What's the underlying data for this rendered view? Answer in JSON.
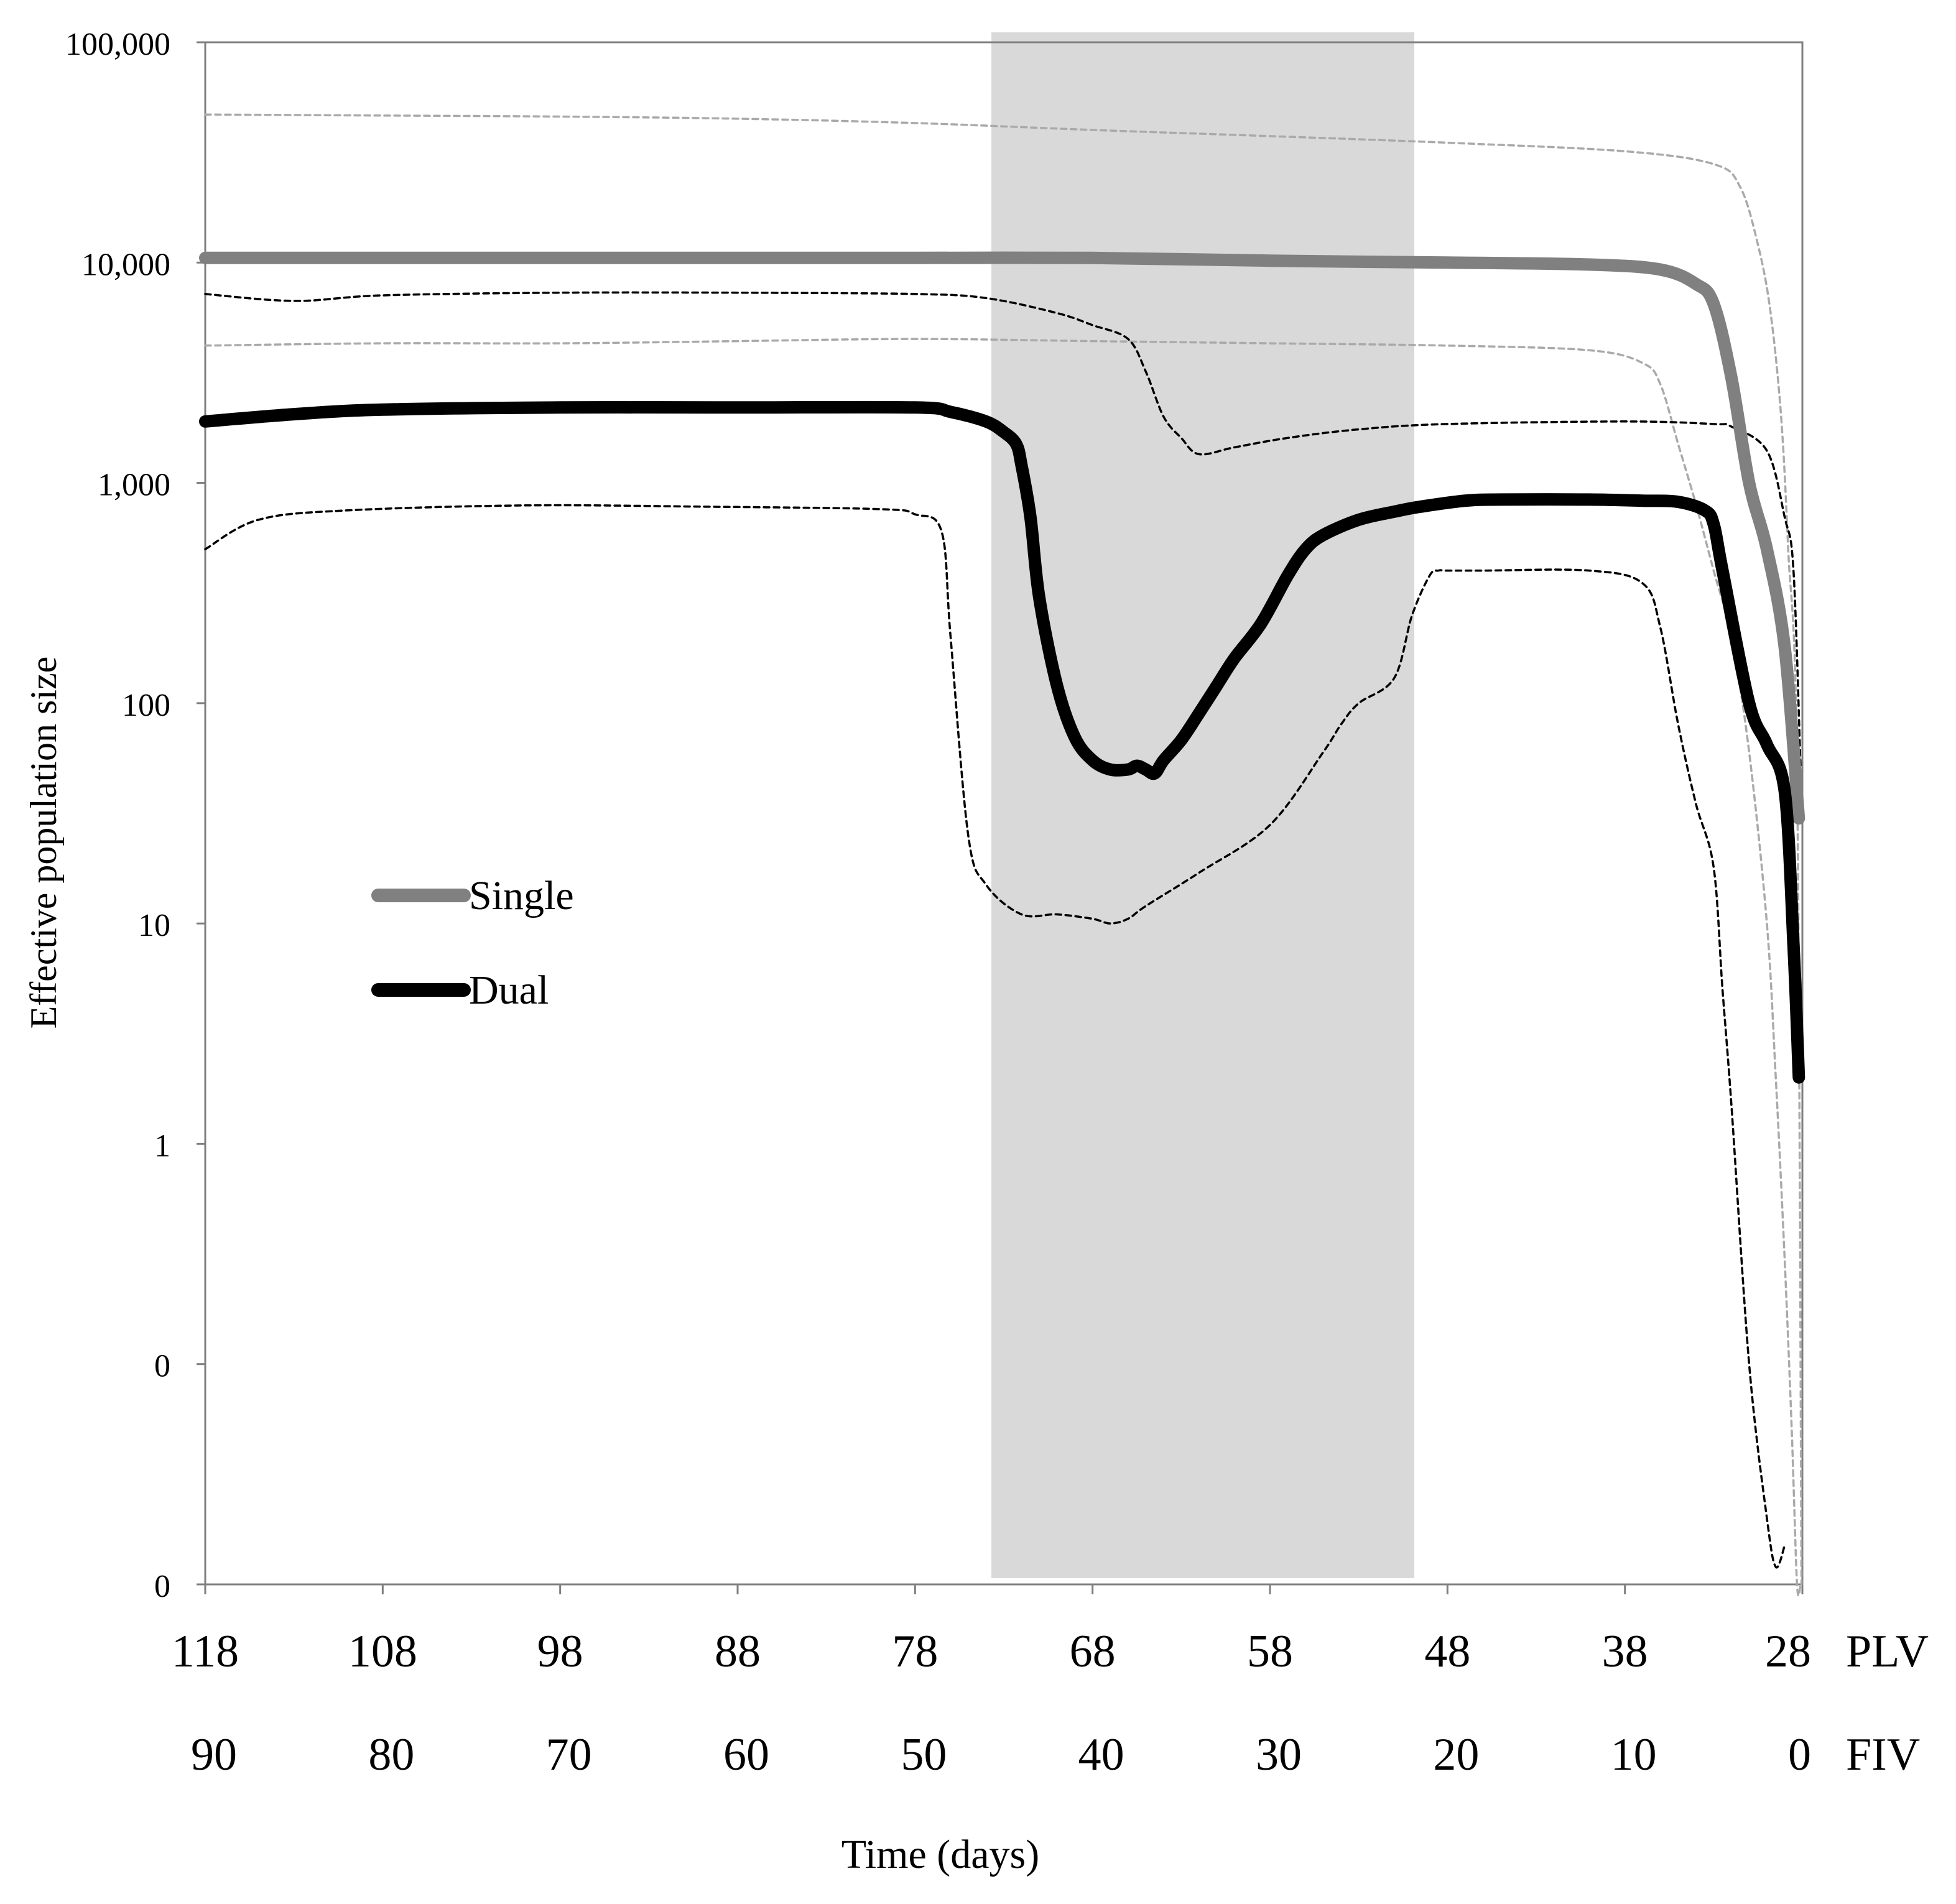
{
  "chart_data": {
    "type": "line",
    "title": "",
    "ylabel": "Effective population size",
    "xlabel": "Time (days)",
    "y_scale": "log",
    "y_tick_labels": [
      "100,000",
      "10,000",
      "1,000",
      "100",
      "10",
      "1",
      "0",
      "0"
    ],
    "x_axis_plv": {
      "label": "PLV",
      "ticks": [
        "118",
        "108",
        "98",
        "88",
        "78",
        "68",
        "58",
        "48",
        "38",
        "28"
      ]
    },
    "x_axis_fiv": {
      "label": "FIV",
      "ticks": [
        "90",
        "80",
        "70",
        "60",
        "50",
        "40",
        "30",
        "20",
        "10",
        "0"
      ]
    },
    "shaded_region_plv": [
      73.5,
      49.5
    ],
    "legend_position": "center-left",
    "series": [
      {
        "name": "Single",
        "color": "#808080",
        "style": "solid-thick",
        "x_plv": [
          118,
          108,
          98,
          88,
          78,
          68,
          58,
          48,
          40,
          36,
          34,
          33,
          32,
          31,
          30,
          29,
          28.2
        ],
        "y": [
          10500,
          10500,
          10500,
          10500,
          10500,
          10500,
          10200,
          10000,
          9800,
          9300,
          8000,
          6500,
          3000,
          1000,
          500,
          180,
          30
        ]
      },
      {
        "name": "Single 95% upper",
        "color": "#aaaaaa",
        "style": "dotted",
        "x_plv": [
          118,
          108,
          98,
          88,
          78,
          68,
          58,
          48,
          38,
          33,
          31.5,
          30.5,
          29.8,
          29.2,
          28.8,
          28.3,
          28.05
        ],
        "y": [
          47000,
          46500,
          46000,
          45000,
          43000,
          40000,
          37500,
          35000,
          32000,
          28000,
          22000,
          12000,
          6000,
          2000,
          500,
          50,
          0.01
        ]
      },
      {
        "name": "Single 95% lower",
        "color": "#aaaaaa",
        "style": "dotted",
        "x_plv": [
          118,
          108,
          98,
          88,
          78,
          68,
          58,
          48,
          40,
          37,
          36,
          35,
          34,
          33,
          32,
          31,
          30,
          29.5,
          29,
          28.6,
          28.3,
          28.1
        ],
        "y": [
          4200,
          4300,
          4300,
          4400,
          4500,
          4400,
          4300,
          4200,
          4000,
          3500,
          2800,
          1500,
          800,
          400,
          200,
          60,
          10,
          2,
          0.3,
          0.05,
          0.005,
          0.001
        ]
      },
      {
        "name": "Dual",
        "color": "#000000",
        "style": "solid-thick",
        "x_plv": [
          118,
          113,
          108,
          98,
          88,
          78,
          76,
          74,
          73,
          72.3,
          72,
          71.5,
          71,
          70,
          69,
          68,
          67,
          66,
          65.5,
          65,
          64.5,
          64,
          63,
          62,
          61,
          60,
          58.5,
          57,
          56,
          55,
          53,
          51,
          49.5,
          47,
          45,
          40,
          37,
          35,
          33.5,
          33,
          32.5,
          31,
          30,
          29,
          28.5,
          28.2
        ],
        "y": [
          1900,
          2050,
          2150,
          2200,
          2200,
          2200,
          2100,
          1900,
          1700,
          1500,
          1200,
          700,
          300,
          120,
          70,
          55,
          50,
          50,
          52,
          50,
          48,
          55,
          68,
          90,
          120,
          160,
          230,
          380,
          500,
          580,
          680,
          740,
          780,
          830,
          840,
          840,
          830,
          820,
          750,
          650,
          400,
          100,
          65,
          40,
          8,
          2
        ]
      },
      {
        "name": "Dual 95% upper",
        "color": "#000000",
        "style": "dotted",
        "x_plv": [
          118,
          113,
          108,
          98,
          88,
          78,
          74,
          70,
          68,
          66,
          65,
          64,
          63,
          62,
          60,
          57,
          53,
          48,
          38,
          33,
          32,
          30,
          29,
          28.5,
          28.1
        ],
        "y": [
          7200,
          6700,
          7100,
          7300,
          7300,
          7200,
          6900,
          5900,
          5200,
          4500,
          3200,
          2000,
          1600,
          1350,
          1450,
          1600,
          1750,
          1850,
          1900,
          1850,
          1800,
          1400,
          700,
          400,
          50
        ]
      },
      {
        "name": "Dual 95% lower",
        "color": "#000000",
        "style": "dotted",
        "x_plv": [
          118,
          115,
          110,
          100,
          90,
          80,
          78,
          76.5,
          76,
          75,
          74,
          72,
          70,
          68,
          67,
          66,
          65,
          62,
          58,
          55,
          54,
          53,
          51,
          50,
          49,
          48.5,
          48,
          46,
          40,
          37,
          36,
          35,
          34,
          33,
          32.5,
          32,
          31,
          30,
          29.5,
          29
        ],
        "y": [
          500,
          680,
          750,
          790,
          780,
          760,
          720,
          600,
          200,
          25,
          15,
          11,
          11,
          10.5,
          10,
          10.5,
          12,
          17,
          28,
          60,
          80,
          100,
          130,
          250,
          380,
          400,
          400,
          400,
          400,
          350,
          220,
          80,
          35,
          18,
          5,
          1.5,
          0.1,
          0.02,
          0.012,
          0.015
        ]
      }
    ]
  }
}
